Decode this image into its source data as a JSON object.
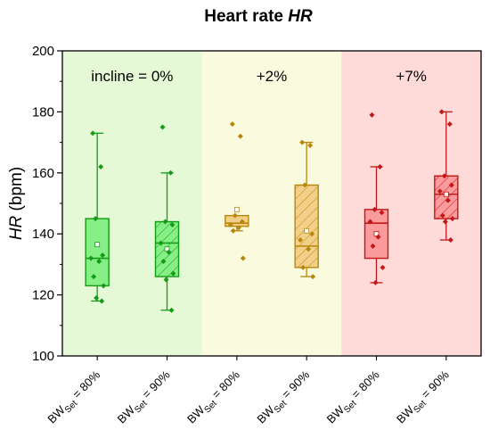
{
  "chart_data": {
    "type": "box",
    "title_prefix": "Heart rate ",
    "title_var": "HR",
    "ylabel_var": "HR",
    "ylabel_unit": " (bpm)",
    "ylim": [
      100,
      200
    ],
    "yticks": [
      100,
      120,
      140,
      160,
      180,
      200
    ],
    "category_base": "BW",
    "category_sub": "Set",
    "regions": [
      {
        "label": "incline = 0%",
        "color": "#e6f9d6"
      },
      {
        "label": "+2%",
        "color": "#fafadf"
      },
      {
        "label": "+7%",
        "color": "#fedad9"
      }
    ],
    "groups": [
      {
        "region": 0,
        "label_suffix": " = 80%",
        "color": "#169b16",
        "fill": "#86ef86",
        "hatched": false,
        "q1": 123,
        "median": 132,
        "q3": 145,
        "whisker_low": 118,
        "whisker_high": 173,
        "mean": 136.5,
        "points": [
          173,
          162,
          145,
          133,
          132,
          131,
          126,
          123,
          119,
          118
        ]
      },
      {
        "region": 0,
        "label_suffix": " = 90%",
        "color": "#169b16",
        "fill": "#86ef86",
        "hatched": true,
        "q1": 126,
        "median": 137,
        "q3": 144,
        "whisker_low": 115,
        "whisker_high": 160,
        "mean": 135,
        "points": [
          175,
          160,
          144,
          143,
          137,
          134,
          131,
          127,
          125,
          115
        ]
      },
      {
        "region": 1,
        "label_suffix": " = 80%",
        "color": "#b8860b",
        "fill": "#f3d08a",
        "hatched": false,
        "q1": 142.5,
        "median": 143.5,
        "q3": 146,
        "whisker_low": 141,
        "whisker_high": 146,
        "mean": 148,
        "points": [
          176,
          172,
          146,
          144,
          143,
          142,
          141,
          132
        ]
      },
      {
        "region": 1,
        "label_suffix": " = 90%",
        "color": "#b8860b",
        "fill": "#f3d08a",
        "hatched": true,
        "q1": 129,
        "median": 136,
        "q3": 156,
        "whisker_low": 126,
        "whisker_high": 170,
        "mean": 141,
        "points": [
          170,
          169,
          156,
          140,
          138,
          135,
          129,
          126
        ]
      },
      {
        "region": 2,
        "label_suffix": " = 80%",
        "color": "#c41717",
        "fill": "#fb9b9b",
        "hatched": false,
        "q1": 132,
        "median": 143.5,
        "q3": 148,
        "whisker_low": 124,
        "whisker_high": 162,
        "mean": 140,
        "points": [
          179,
          162,
          148,
          147,
          144,
          139,
          136,
          129,
          124
        ]
      },
      {
        "region": 2,
        "label_suffix": " = 90%",
        "color": "#c41717",
        "fill": "#fb9b9b",
        "hatched": true,
        "q1": 145,
        "median": 153,
        "q3": 159,
        "whisker_low": 138,
        "whisker_high": 180,
        "mean": 153,
        "points": [
          180,
          176,
          159,
          156,
          154,
          151,
          146,
          145,
          144,
          138
        ]
      }
    ],
    "grid": false
  }
}
